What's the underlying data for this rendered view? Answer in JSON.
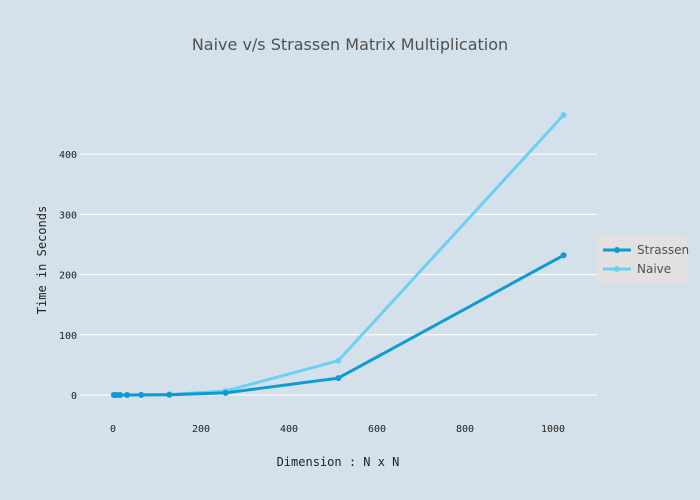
{
  "chart_data": {
    "type": "line",
    "title": "Naive v/s Strassen Matrix Multiplication",
    "xlabel": "Dimension : N x N",
    "ylabel": "Time in Seconds",
    "xlim": [
      -75,
      1100
    ],
    "ylim": [
      -25,
      490
    ],
    "xticks": [
      0,
      200,
      400,
      600,
      800,
      1000
    ],
    "yticks": [
      0,
      100,
      200,
      300,
      400
    ],
    "grid": "horizontal",
    "legend_position": "right",
    "series": [
      {
        "name": "Strassen",
        "color": "#0e9bd4",
        "x": [
          2,
          4,
          8,
          16,
          32,
          64,
          128,
          256,
          512,
          1024
        ],
        "y": [
          0,
          0,
          0,
          0,
          0,
          0.1,
          0.4,
          3.5,
          28,
          232
        ]
      },
      {
        "name": "Naive",
        "color": "#6ecff6",
        "x": [
          2,
          4,
          8,
          16,
          32,
          64,
          128,
          256,
          512,
          1024
        ],
        "y": [
          0,
          0,
          0,
          0,
          0,
          0.1,
          0.8,
          6.5,
          57,
          465
        ]
      }
    ]
  }
}
